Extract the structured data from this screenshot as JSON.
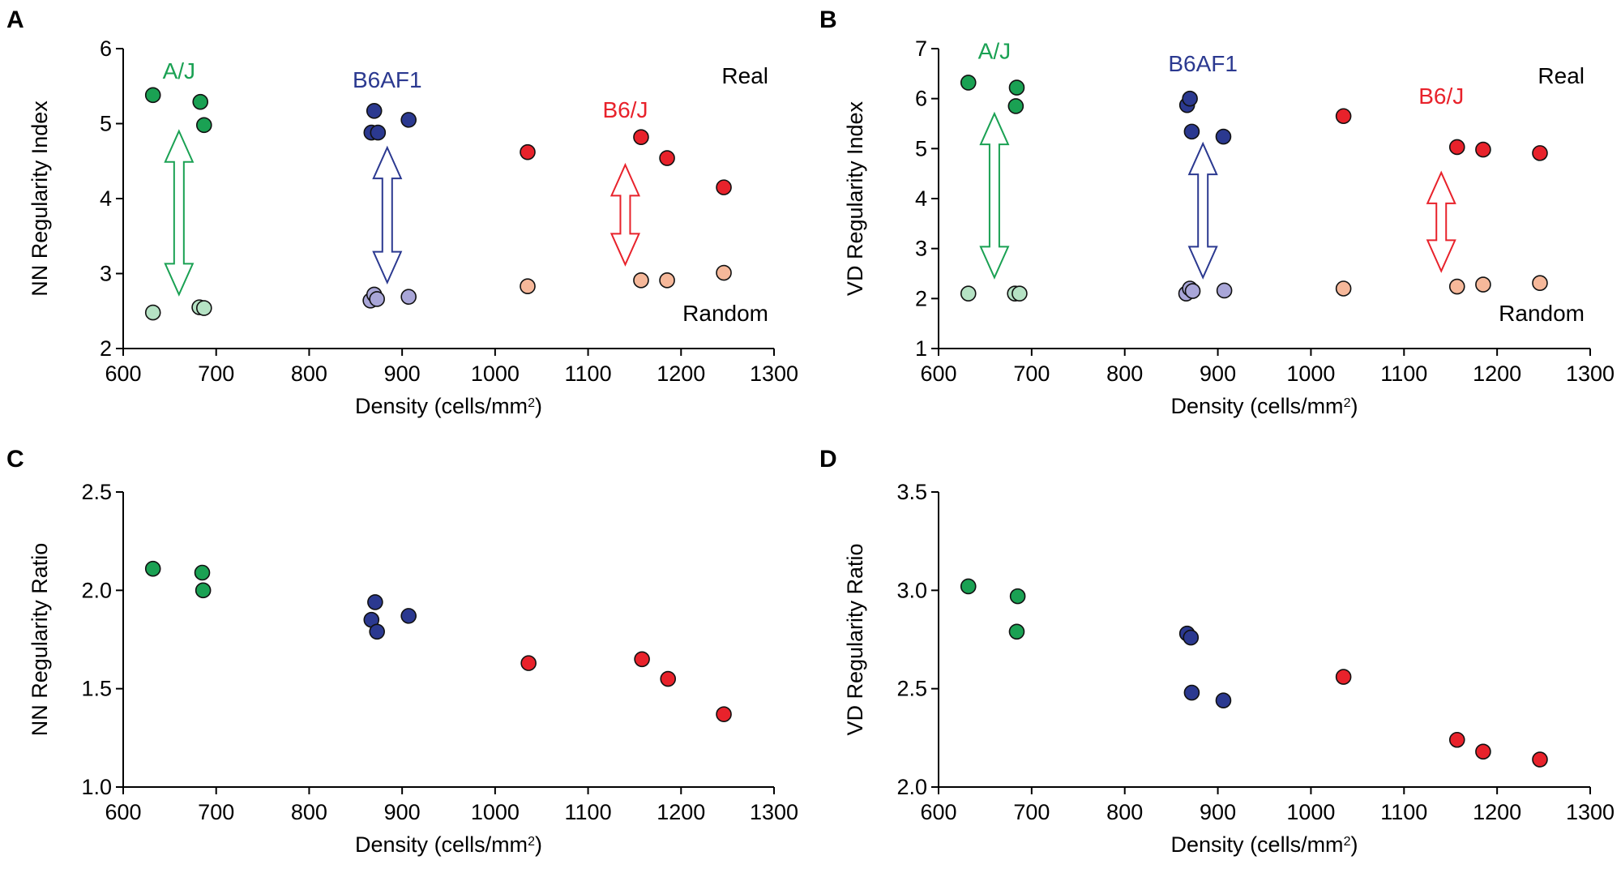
{
  "chart_data": [
    {
      "panel": "A",
      "type": "scatter",
      "ylabel": "NN Regularity Index",
      "xlabel": "Density (cells/mm",
      "xlabel_sup": "2",
      "xlabel_end": ")",
      "xlim": [
        600,
        1300
      ],
      "ylim": [
        2,
        6
      ],
      "xticks": [
        600,
        700,
        800,
        900,
        1000,
        1100,
        1200,
        1300
      ],
      "yticks": [
        2,
        3,
        4,
        5,
        6
      ],
      "series": [
        {
          "name": "A/J Real",
          "color": "#1aa153",
          "points": [
            [
              632,
              5.38
            ],
            [
              683,
              5.29
            ],
            [
              687,
              4.98
            ]
          ]
        },
        {
          "name": "A/J Random",
          "color": "#b5e2c4",
          "points": [
            [
              632,
              2.48
            ],
            [
              682,
              2.55
            ],
            [
              687,
              2.54
            ]
          ]
        },
        {
          "name": "B6AF1 Real",
          "color": "#2b3990",
          "points": [
            [
              867,
              4.88
            ],
            [
              870,
              5.17
            ],
            [
              874,
              4.88
            ],
            [
              907,
              5.05
            ]
          ]
        },
        {
          "name": "B6AF1 Random",
          "color": "#a9a6d8",
          "points": [
            [
              866,
              2.64
            ],
            [
              870,
              2.72
            ],
            [
              873,
              2.66
            ],
            [
              907,
              2.69
            ]
          ]
        },
        {
          "name": "B6/J Real",
          "color": "#e8222b",
          "points": [
            [
              1035,
              4.62
            ],
            [
              1157,
              4.82
            ],
            [
              1185,
              4.54
            ],
            [
              1246,
              4.15
            ]
          ]
        },
        {
          "name": "B6/J Random",
          "color": "#f6b89a",
          "points": [
            [
              1035,
              2.83
            ],
            [
              1157,
              2.91
            ],
            [
              1185,
              2.91
            ],
            [
              1246,
              3.01
            ]
          ]
        }
      ],
      "strain_labels": [
        {
          "text": "A/J",
          "color": "#1aa153",
          "x": 660,
          "y": 5.6
        },
        {
          "text": "B6AF1",
          "color": "#2b3990",
          "x": 884,
          "y": 5.48
        },
        {
          "text": "B6/J",
          "color": "#e8222b",
          "x": 1140,
          "y": 5.08
        }
      ],
      "arrows": [
        {
          "color": "#1aa153",
          "x": 660,
          "y1": 4.9,
          "y2": 2.72
        },
        {
          "color": "#2b3990",
          "x": 884,
          "y1": 4.68,
          "y2": 2.88
        },
        {
          "color": "#e8222b",
          "x": 1140,
          "y1": 4.45,
          "y2": 3.12
        }
      ],
      "corner_labels": {
        "top": "Real",
        "bottom": "Random"
      }
    },
    {
      "panel": "B",
      "type": "scatter",
      "ylabel": "VD Regularity Index",
      "xlabel": "Density (cells/mm",
      "xlabel_sup": "2",
      "xlabel_end": ")",
      "xlim": [
        600,
        1300
      ],
      "ylim": [
        1,
        7
      ],
      "xticks": [
        600,
        700,
        800,
        900,
        1000,
        1100,
        1200,
        1300
      ],
      "yticks": [
        1,
        2,
        3,
        4,
        5,
        6,
        7
      ],
      "series": [
        {
          "name": "A/J Real",
          "color": "#1aa153",
          "points": [
            [
              632,
              6.32
            ],
            [
              684,
              6.22
            ],
            [
              683,
              5.85
            ]
          ]
        },
        {
          "name": "A/J Random",
          "color": "#b5e2c4",
          "points": [
            [
              632,
              2.1
            ],
            [
              682,
              2.1
            ],
            [
              687,
              2.1
            ]
          ]
        },
        {
          "name": "B6AF1 Real",
          "color": "#2b3990",
          "points": [
            [
              867,
              5.87
            ],
            [
              870,
              6.0
            ],
            [
              872,
              5.34
            ],
            [
              906,
              5.24
            ]
          ]
        },
        {
          "name": "B6AF1 Random",
          "color": "#a9a6d8",
          "points": [
            [
              866,
              2.1
            ],
            [
              870,
              2.2
            ],
            [
              873,
              2.15
            ],
            [
              907,
              2.16
            ]
          ]
        },
        {
          "name": "B6/J Real",
          "color": "#e8222b",
          "points": [
            [
              1035,
              5.65
            ],
            [
              1157,
              5.03
            ],
            [
              1185,
              4.98
            ],
            [
              1246,
              4.91
            ]
          ]
        },
        {
          "name": "B6/J Random",
          "color": "#f6b89a",
          "points": [
            [
              1035,
              2.2
            ],
            [
              1157,
              2.24
            ],
            [
              1185,
              2.28
            ],
            [
              1246,
              2.31
            ]
          ]
        }
      ],
      "strain_labels": [
        {
          "text": "A/J",
          "color": "#1aa153",
          "x": 660,
          "y": 6.8
        },
        {
          "text": "B6AF1",
          "color": "#2b3990",
          "x": 884,
          "y": 6.55
        },
        {
          "text": "B6/J",
          "color": "#e8222b",
          "x": 1140,
          "y": 5.9
        }
      ],
      "arrows": [
        {
          "color": "#1aa153",
          "x": 660,
          "y1": 5.7,
          "y2": 2.42
        },
        {
          "color": "#2b3990",
          "x": 884,
          "y1": 5.1,
          "y2": 2.42
        },
        {
          "color": "#e8222b",
          "x": 1140,
          "y1": 4.52,
          "y2": 2.55
        }
      ],
      "corner_labels": {
        "top": "Real",
        "bottom": "Random"
      }
    },
    {
      "panel": "C",
      "type": "scatter",
      "ylabel": "NN Regularity Ratio",
      "xlabel": "Density (cells/mm",
      "xlabel_sup": "2",
      "xlabel_end": ")",
      "xlim": [
        600,
        1300
      ],
      "ylim": [
        1.0,
        2.5
      ],
      "xticks": [
        600,
        700,
        800,
        900,
        1000,
        1100,
        1200,
        1300
      ],
      "yticks": [
        "1.0",
        "1.5",
        "2.0",
        "2.5"
      ],
      "series": [
        {
          "name": "A/J",
          "color": "#1aa153",
          "points": [
            [
              632,
              2.11
            ],
            [
              685,
              2.09
            ],
            [
              686,
              2.0
            ]
          ]
        },
        {
          "name": "B6AF1",
          "color": "#2b3990",
          "points": [
            [
              867,
              1.85
            ],
            [
              871,
              1.94
            ],
            [
              873,
              1.79
            ],
            [
              907,
              1.87
            ]
          ]
        },
        {
          "name": "B6/J",
          "color": "#e8222b",
          "points": [
            [
              1036,
              1.63
            ],
            [
              1158,
              1.65
            ],
            [
              1186,
              1.55
            ],
            [
              1246,
              1.37
            ]
          ]
        }
      ]
    },
    {
      "panel": "D",
      "type": "scatter",
      "ylabel": "VD Regularity Ratio",
      "xlabel": "Density (cells/mm",
      "xlabel_sup": "2",
      "xlabel_end": ")",
      "xlim": [
        600,
        1300
      ],
      "ylim": [
        2.0,
        3.5
      ],
      "xticks": [
        600,
        700,
        800,
        900,
        1000,
        1100,
        1200,
        1300
      ],
      "yticks": [
        "2.0",
        "2.5",
        "3.0",
        "3.5"
      ],
      "series": [
        {
          "name": "A/J",
          "color": "#1aa153",
          "points": [
            [
              632,
              3.02
            ],
            [
              685,
              2.97
            ],
            [
              684,
              2.79
            ]
          ]
        },
        {
          "name": "B6AF1",
          "color": "#2b3990",
          "points": [
            [
              867,
              2.78
            ],
            [
              871,
              2.76
            ],
            [
              872,
              2.48
            ],
            [
              906,
              2.44
            ]
          ]
        },
        {
          "name": "B6/J",
          "color": "#e8222b",
          "points": [
            [
              1035,
              2.56
            ],
            [
              1157,
              2.24
            ],
            [
              1185,
              2.18
            ],
            [
              1246,
              2.14
            ]
          ]
        }
      ]
    }
  ]
}
